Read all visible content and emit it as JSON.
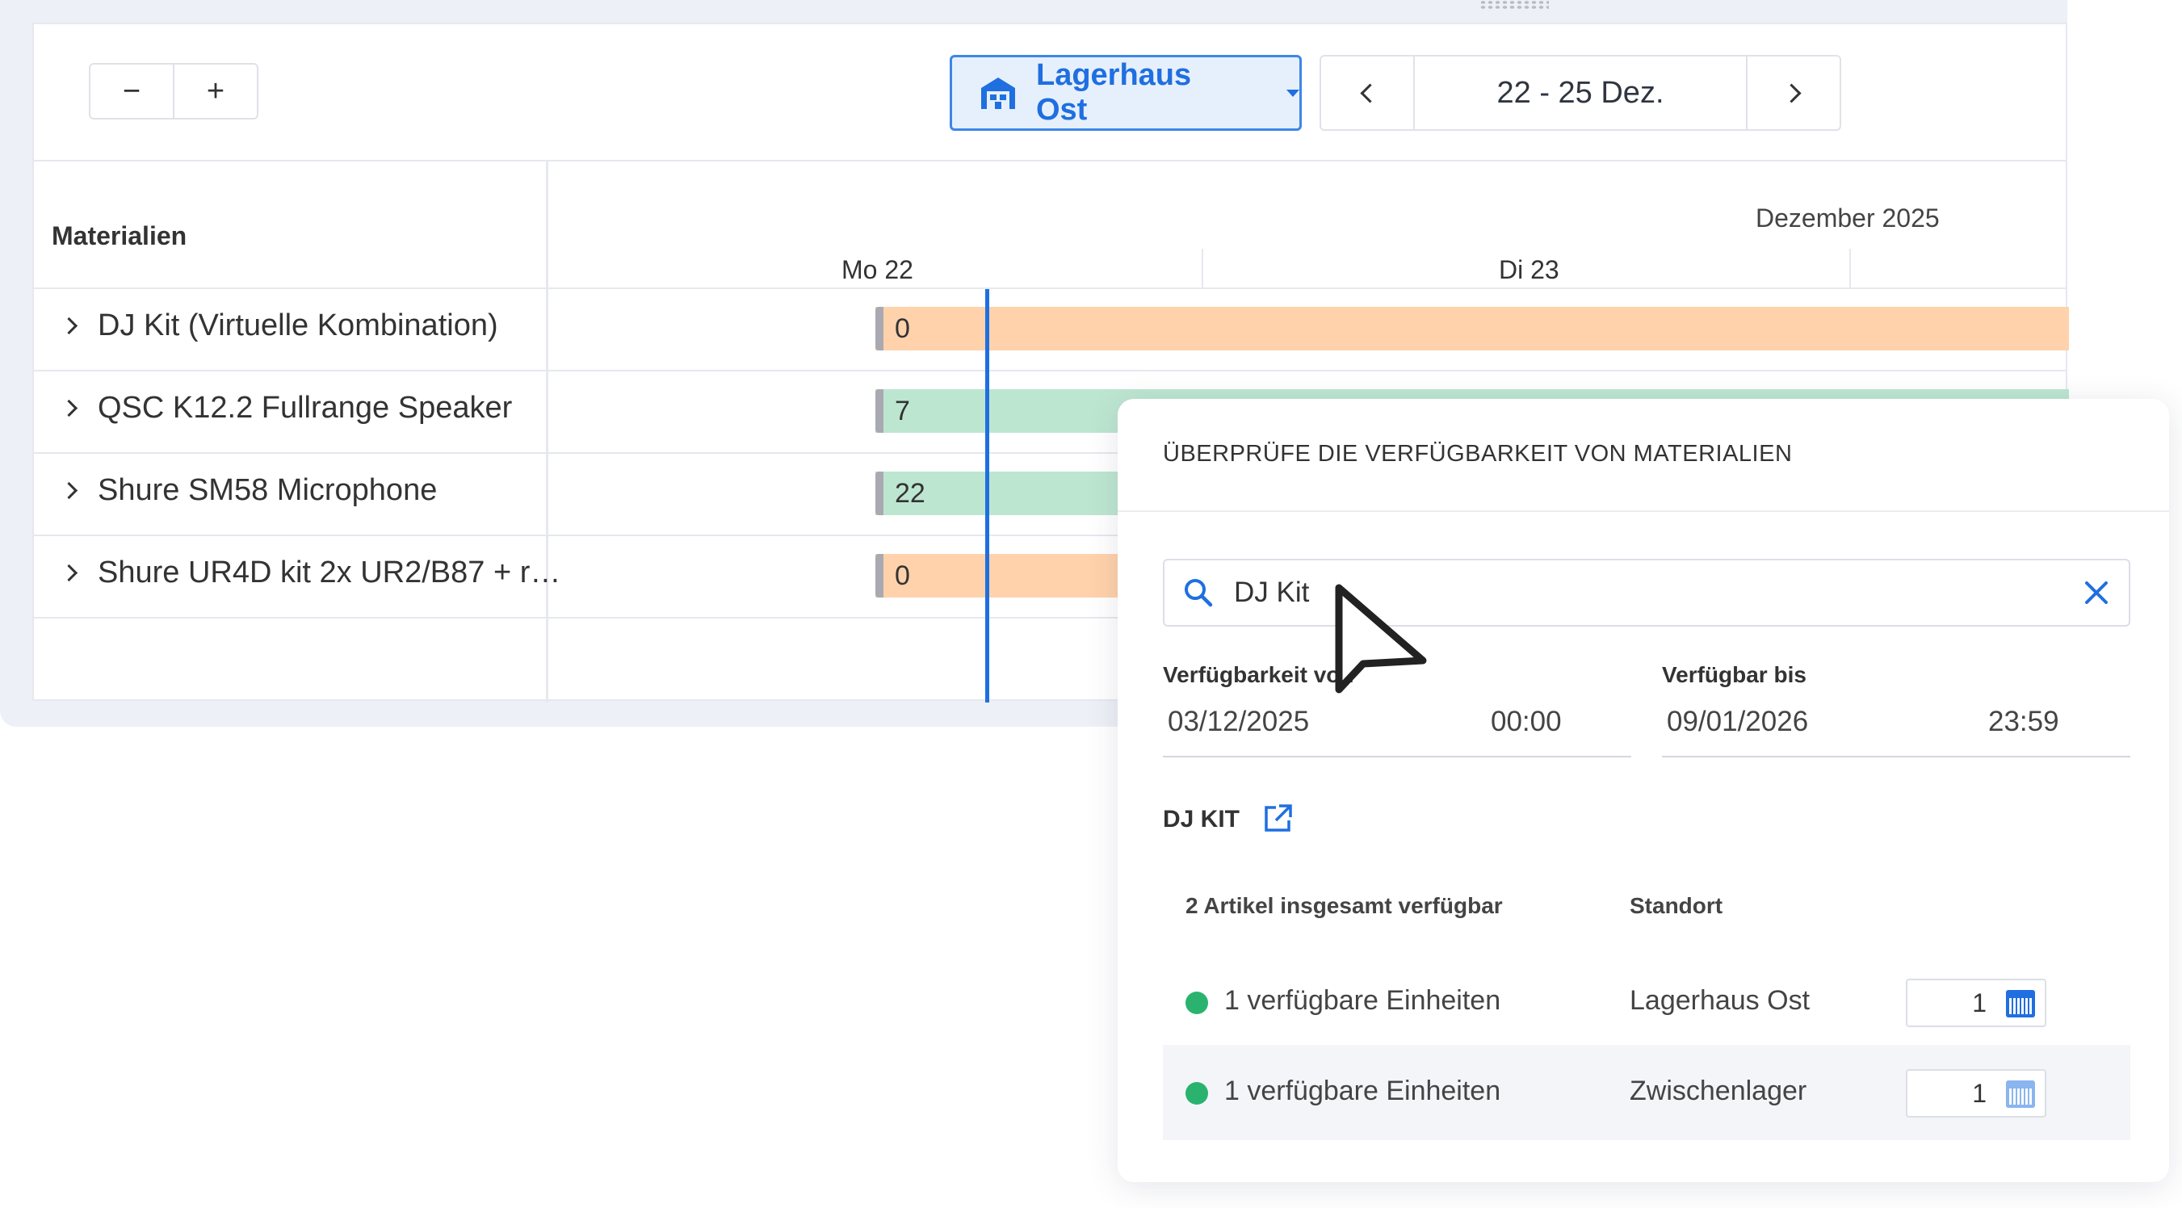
{
  "toolbar": {
    "zoom_out_label": "−",
    "zoom_in_label": "+",
    "location": "Lagerhaus Ost",
    "date_range": "22 - 25 Dez."
  },
  "grid": {
    "materials_header": "Materialien",
    "month": "Dezember 2025",
    "days": [
      "Mo 22",
      "Di 23"
    ],
    "rows": [
      {
        "name": "DJ Kit (Virtuelle Kombination)",
        "value": "0",
        "status": "orange"
      },
      {
        "name": "QSC K12.2 Fullrange Speaker",
        "value": "7",
        "status": "green"
      },
      {
        "name": "Shure SM58 Microphone",
        "value": "22",
        "status": "green"
      },
      {
        "name": "Shure UR4D kit 2x UR2/B87 + r…",
        "value": "0",
        "status": "orange"
      }
    ]
  },
  "panel": {
    "title": "ÜBERPRÜFE DIE VERFÜGBARKEIT VON MATERIALIEN",
    "search_value": "DJ Kit",
    "from_label": "Verfügbarkeit von",
    "from_date": "03/12/2025",
    "from_time": "00:00",
    "to_label": "Verfügbar bis",
    "to_date": "09/01/2026",
    "to_time": "23:59",
    "kit_title": "DJ KIT",
    "total_header": "2 Artikel insgesamt verfügbar",
    "location_header": "Standort",
    "rows": [
      {
        "units": "1 verfügbare Einheiten",
        "location": "Lagerhaus Ost",
        "qty": "1"
      },
      {
        "units": "1 verfügbare Einheiten",
        "location": "Zwischenlager",
        "qty": "1"
      }
    ]
  },
  "colors": {
    "accent": "#1f6fe0",
    "orange_bar": "#ffd2ab",
    "green_bar": "#bde6d1",
    "available_dot": "#29b36f"
  }
}
